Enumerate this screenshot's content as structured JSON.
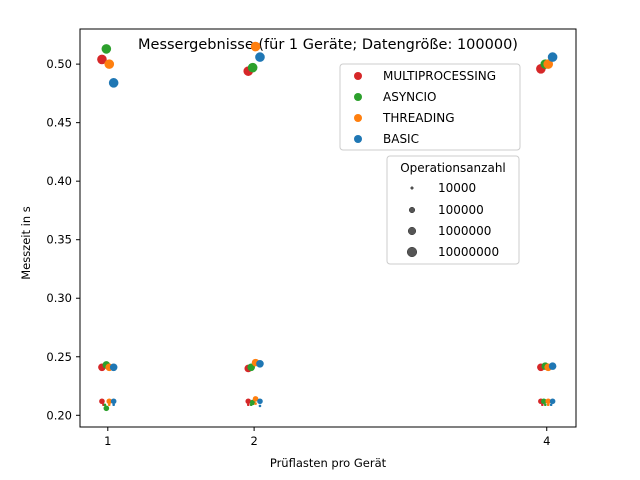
{
  "chart_data": {
    "type": "scatter",
    "title": "Messergebnisse (für 1 Geräte; Datengröße: 100000)",
    "xlabel": "Prüflasten pro Gerät",
    "ylabel": "Messzeit in s",
    "xlim": [
      0.81,
      4.2
    ],
    "ylim": [
      0.19,
      0.53
    ],
    "x_ticks": [
      1,
      2,
      4
    ],
    "x_tick_labels": [
      "1",
      "2",
      "4"
    ],
    "y_ticks": [
      0.2,
      0.25,
      0.3,
      0.35,
      0.4,
      0.45,
      0.5
    ],
    "y_tick_labels": [
      "0.20",
      "0.25",
      "0.30",
      "0.35",
      "0.40",
      "0.45",
      "0.50"
    ],
    "grid": false,
    "series_legend_position": "upper-right",
    "size_legend_position": "right",
    "size_legend_title": "Operationsanzahl",
    "size_legend": [
      {
        "label": "10000",
        "value": 10000
      },
      {
        "label": "100000",
        "value": 100000
      },
      {
        "label": "1000000",
        "value": 1000000
      },
      {
        "label": "10000000",
        "value": 10000000
      }
    ],
    "series": [
      {
        "name": "MULTIPROCESSING",
        "color": "#d62728",
        "points": [
          {
            "x": 0.96,
            "y": 0.212,
            "ops": 100000
          },
          {
            "x": 0.97,
            "y": 0.209,
            "ops": 10000
          },
          {
            "x": 0.96,
            "y": 0.241,
            "ops": 1000000
          },
          {
            "x": 0.96,
            "y": 0.504,
            "ops": 10000000
          },
          {
            "x": 1.96,
            "y": 0.212,
            "ops": 100000
          },
          {
            "x": 1.96,
            "y": 0.209,
            "ops": 10000
          },
          {
            "x": 1.96,
            "y": 0.24,
            "ops": 1000000
          },
          {
            "x": 1.96,
            "y": 0.494,
            "ops": 10000000
          },
          {
            "x": 3.96,
            "y": 0.212,
            "ops": 100000
          },
          {
            "x": 3.97,
            "y": 0.209,
            "ops": 10000
          },
          {
            "x": 3.96,
            "y": 0.241,
            "ops": 1000000
          },
          {
            "x": 3.96,
            "y": 0.496,
            "ops": 10000000
          }
        ]
      },
      {
        "name": "ASYNCIO",
        "color": "#2ca02c",
        "points": [
          {
            "x": 0.99,
            "y": 0.206,
            "ops": 100000
          },
          {
            "x": 0.98,
            "y": 0.209,
            "ops": 10000
          },
          {
            "x": 0.99,
            "y": 0.243,
            "ops": 1000000
          },
          {
            "x": 0.99,
            "y": 0.513,
            "ops": 10000000
          },
          {
            "x": 1.99,
            "y": 0.211,
            "ops": 100000
          },
          {
            "x": 1.98,
            "y": 0.209,
            "ops": 10000
          },
          {
            "x": 1.98,
            "y": 0.241,
            "ops": 1000000
          },
          {
            "x": 1.99,
            "y": 0.497,
            "ops": 10000000
          },
          {
            "x": 3.98,
            "y": 0.212,
            "ops": 100000
          },
          {
            "x": 3.99,
            "y": 0.209,
            "ops": 10000
          },
          {
            "x": 3.99,
            "y": 0.242,
            "ops": 1000000
          },
          {
            "x": 3.99,
            "y": 0.5,
            "ops": 10000000
          }
        ]
      },
      {
        "name": "THREADING",
        "color": "#ff7f0e",
        "points": [
          {
            "x": 1.01,
            "y": 0.212,
            "ops": 100000
          },
          {
            "x": 1.01,
            "y": 0.209,
            "ops": 10000
          },
          {
            "x": 1.01,
            "y": 0.241,
            "ops": 1000000
          },
          {
            "x": 1.01,
            "y": 0.5,
            "ops": 10000000
          },
          {
            "x": 2.01,
            "y": 0.214,
            "ops": 100000
          },
          {
            "x": 2.01,
            "y": 0.21,
            "ops": 10000
          },
          {
            "x": 2.01,
            "y": 0.245,
            "ops": 1000000
          },
          {
            "x": 2.01,
            "y": 0.515,
            "ops": 10000000
          },
          {
            "x": 4.01,
            "y": 0.212,
            "ops": 100000
          },
          {
            "x": 4.01,
            "y": 0.209,
            "ops": 10000
          },
          {
            "x": 4.01,
            "y": 0.241,
            "ops": 1000000
          },
          {
            "x": 4.01,
            "y": 0.5,
            "ops": 10000000
          }
        ]
      },
      {
        "name": "BASIC",
        "color": "#1f77b4",
        "points": [
          {
            "x": 1.04,
            "y": 0.212,
            "ops": 100000
          },
          {
            "x": 1.04,
            "y": 0.209,
            "ops": 10000
          },
          {
            "x": 1.04,
            "y": 0.241,
            "ops": 1000000
          },
          {
            "x": 1.04,
            "y": 0.484,
            "ops": 10000000
          },
          {
            "x": 2.04,
            "y": 0.212,
            "ops": 100000
          },
          {
            "x": 2.04,
            "y": 0.208,
            "ops": 10000
          },
          {
            "x": 2.04,
            "y": 0.244,
            "ops": 1000000
          },
          {
            "x": 2.04,
            "y": 0.506,
            "ops": 10000000
          },
          {
            "x": 4.04,
            "y": 0.212,
            "ops": 100000
          },
          {
            "x": 4.03,
            "y": 0.209,
            "ops": 10000
          },
          {
            "x": 4.04,
            "y": 0.242,
            "ops": 1000000
          },
          {
            "x": 4.04,
            "y": 0.506,
            "ops": 10000000
          }
        ]
      }
    ]
  }
}
